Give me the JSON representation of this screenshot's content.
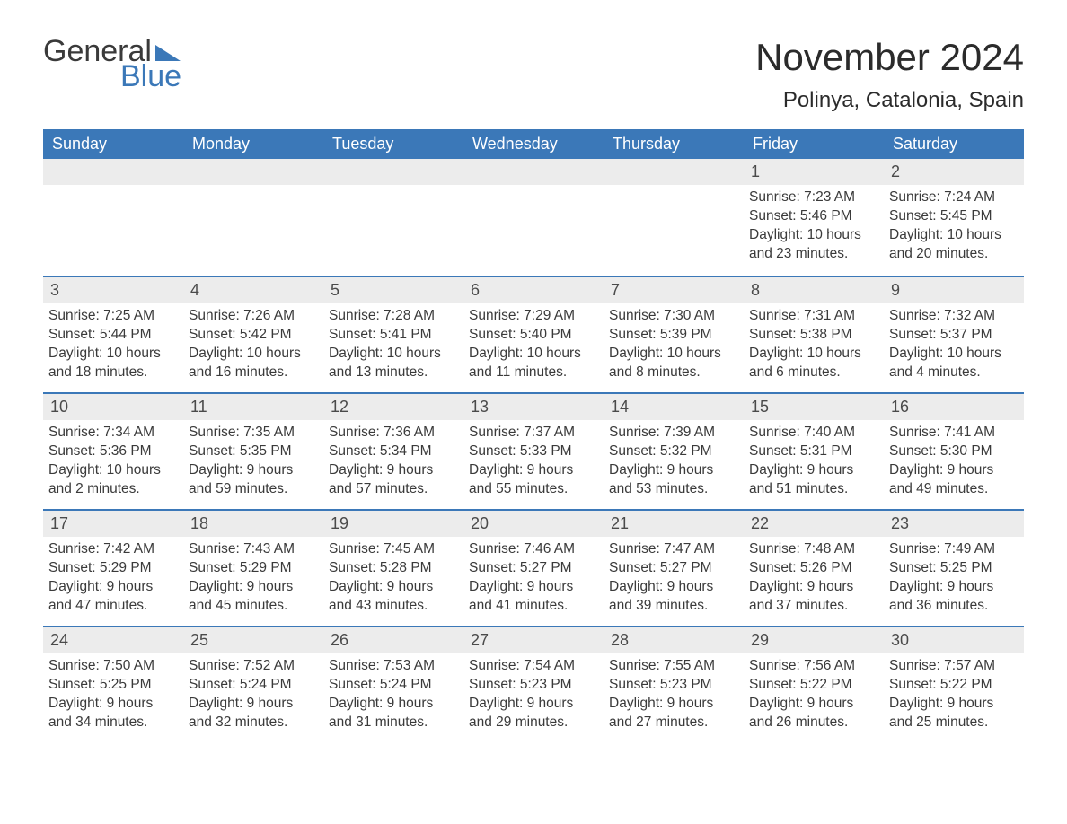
{
  "logo": {
    "word1": "General",
    "word2": "Blue",
    "triangle_color": "#3b78b8"
  },
  "header": {
    "month_title": "November 2024",
    "location": "Polinya, Catalonia, Spain"
  },
  "styling": {
    "header_bg": "#3b78b8",
    "header_text": "#ffffff",
    "daynum_bg": "#ececec",
    "border_color": "#3b78b8",
    "body_text": "#3a3a3a",
    "title_fontsize": 42,
    "location_fontsize": 24,
    "dayheader_fontsize": 18,
    "daynum_fontsize": 18,
    "body_fontsize": 15.5
  },
  "day_headers": [
    "Sunday",
    "Monday",
    "Tuesday",
    "Wednesday",
    "Thursday",
    "Friday",
    "Saturday"
  ],
  "weeks": [
    [
      null,
      null,
      null,
      null,
      null,
      {
        "n": "1",
        "sr": "7:23 AM",
        "ss": "5:46 PM",
        "dl": "10 hours and 23 minutes."
      },
      {
        "n": "2",
        "sr": "7:24 AM",
        "ss": "5:45 PM",
        "dl": "10 hours and 20 minutes."
      }
    ],
    [
      {
        "n": "3",
        "sr": "7:25 AM",
        "ss": "5:44 PM",
        "dl": "10 hours and 18 minutes."
      },
      {
        "n": "4",
        "sr": "7:26 AM",
        "ss": "5:42 PM",
        "dl": "10 hours and 16 minutes."
      },
      {
        "n": "5",
        "sr": "7:28 AM",
        "ss": "5:41 PM",
        "dl": "10 hours and 13 minutes."
      },
      {
        "n": "6",
        "sr": "7:29 AM",
        "ss": "5:40 PM",
        "dl": "10 hours and 11 minutes."
      },
      {
        "n": "7",
        "sr": "7:30 AM",
        "ss": "5:39 PM",
        "dl": "10 hours and 8 minutes."
      },
      {
        "n": "8",
        "sr": "7:31 AM",
        "ss": "5:38 PM",
        "dl": "10 hours and 6 minutes."
      },
      {
        "n": "9",
        "sr": "7:32 AM",
        "ss": "5:37 PM",
        "dl": "10 hours and 4 minutes."
      }
    ],
    [
      {
        "n": "10",
        "sr": "7:34 AM",
        "ss": "5:36 PM",
        "dl": "10 hours and 2 minutes."
      },
      {
        "n": "11",
        "sr": "7:35 AM",
        "ss": "5:35 PM",
        "dl": "9 hours and 59 minutes."
      },
      {
        "n": "12",
        "sr": "7:36 AM",
        "ss": "5:34 PM",
        "dl": "9 hours and 57 minutes."
      },
      {
        "n": "13",
        "sr": "7:37 AM",
        "ss": "5:33 PM",
        "dl": "9 hours and 55 minutes."
      },
      {
        "n": "14",
        "sr": "7:39 AM",
        "ss": "5:32 PM",
        "dl": "9 hours and 53 minutes."
      },
      {
        "n": "15",
        "sr": "7:40 AM",
        "ss": "5:31 PM",
        "dl": "9 hours and 51 minutes."
      },
      {
        "n": "16",
        "sr": "7:41 AM",
        "ss": "5:30 PM",
        "dl": "9 hours and 49 minutes."
      }
    ],
    [
      {
        "n": "17",
        "sr": "7:42 AM",
        "ss": "5:29 PM",
        "dl": "9 hours and 47 minutes."
      },
      {
        "n": "18",
        "sr": "7:43 AM",
        "ss": "5:29 PM",
        "dl": "9 hours and 45 minutes."
      },
      {
        "n": "19",
        "sr": "7:45 AM",
        "ss": "5:28 PM",
        "dl": "9 hours and 43 minutes."
      },
      {
        "n": "20",
        "sr": "7:46 AM",
        "ss": "5:27 PM",
        "dl": "9 hours and 41 minutes."
      },
      {
        "n": "21",
        "sr": "7:47 AM",
        "ss": "5:27 PM",
        "dl": "9 hours and 39 minutes."
      },
      {
        "n": "22",
        "sr": "7:48 AM",
        "ss": "5:26 PM",
        "dl": "9 hours and 37 minutes."
      },
      {
        "n": "23",
        "sr": "7:49 AM",
        "ss": "5:25 PM",
        "dl": "9 hours and 36 minutes."
      }
    ],
    [
      {
        "n": "24",
        "sr": "7:50 AM",
        "ss": "5:25 PM",
        "dl": "9 hours and 34 minutes."
      },
      {
        "n": "25",
        "sr": "7:52 AM",
        "ss": "5:24 PM",
        "dl": "9 hours and 32 minutes."
      },
      {
        "n": "26",
        "sr": "7:53 AM",
        "ss": "5:24 PM",
        "dl": "9 hours and 31 minutes."
      },
      {
        "n": "27",
        "sr": "7:54 AM",
        "ss": "5:23 PM",
        "dl": "9 hours and 29 minutes."
      },
      {
        "n": "28",
        "sr": "7:55 AM",
        "ss": "5:23 PM",
        "dl": "9 hours and 27 minutes."
      },
      {
        "n": "29",
        "sr": "7:56 AM",
        "ss": "5:22 PM",
        "dl": "9 hours and 26 minutes."
      },
      {
        "n": "30",
        "sr": "7:57 AM",
        "ss": "5:22 PM",
        "dl": "9 hours and 25 minutes."
      }
    ]
  ],
  "labels": {
    "sunrise": "Sunrise:",
    "sunset": "Sunset:",
    "daylight": "Daylight:"
  }
}
